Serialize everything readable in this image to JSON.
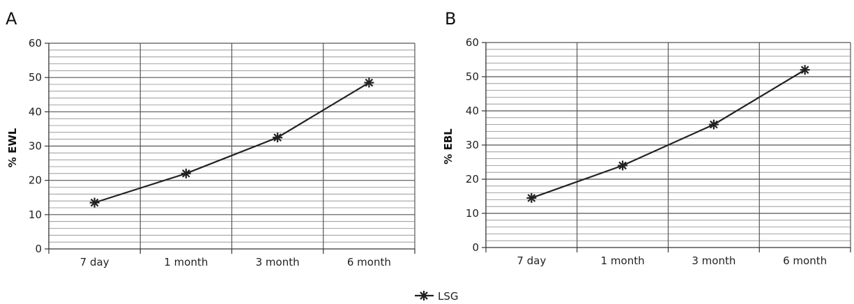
{
  "chart_data": [
    {
      "panel": "A",
      "type": "line",
      "ylabel": "% EWL",
      "xlabel": "",
      "categories": [
        "7 day",
        "1 month",
        "3 month",
        "6 month"
      ],
      "ylim": [
        0,
        60
      ],
      "yticks": [
        0,
        10,
        20,
        30,
        40,
        50,
        60
      ],
      "grid": true,
      "series": [
        {
          "name": "LSG",
          "values": [
            13.5,
            22,
            32.5,
            48.5
          ]
        }
      ]
    },
    {
      "panel": "B",
      "type": "line",
      "ylabel": "% EBL",
      "xlabel": "",
      "categories": [
        "7 day",
        "1 month",
        "3 month",
        "6 month"
      ],
      "ylim": [
        0,
        60
      ],
      "yticks": [
        0,
        10,
        20,
        30,
        40,
        50,
        60
      ],
      "grid": true,
      "series": [
        {
          "name": "LSG",
          "values": [
            14.5,
            24,
            36,
            52
          ]
        }
      ]
    }
  ],
  "legend": {
    "placement": "bottom-center",
    "entries": [
      "LSG"
    ],
    "marker": "asterisk-icon"
  },
  "colors": {
    "line": "#222222",
    "grid": "#555555"
  }
}
